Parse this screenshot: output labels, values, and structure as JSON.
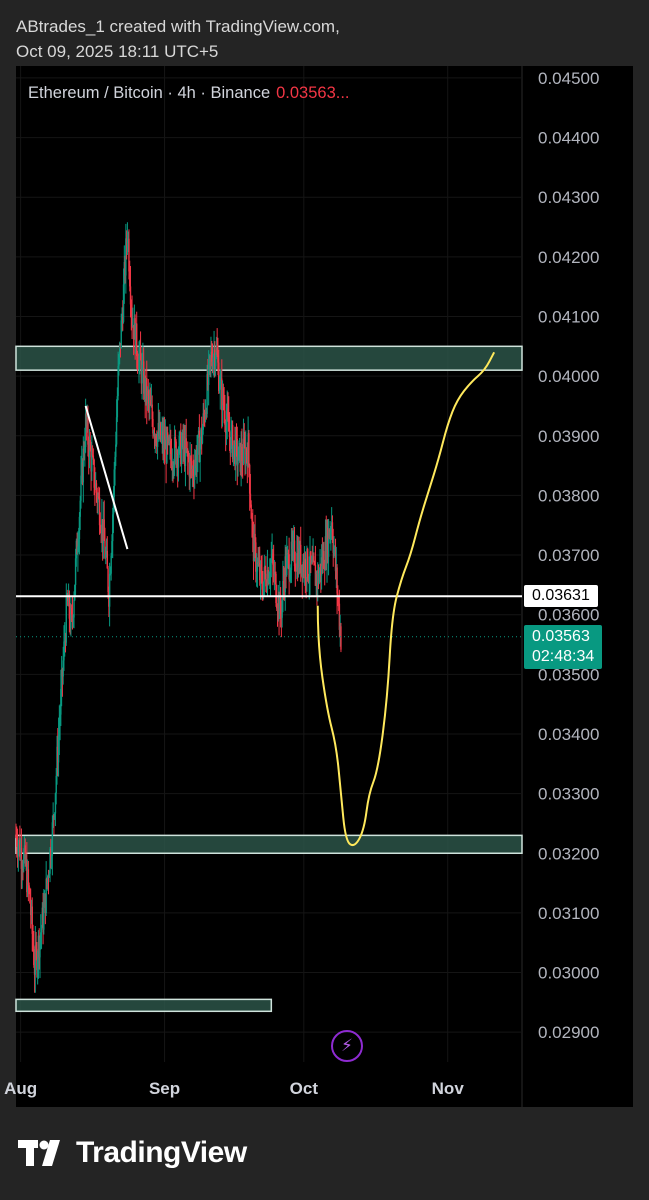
{
  "header": {
    "line1": "ABtrades_1 created with TradingView.com,",
    "line2": "Oct 09, 2025 18:11 UTC+5"
  },
  "ticker": {
    "symbol": "Ethereum / Bitcoin · 4h · Binance",
    "price": "0.03563..."
  },
  "price_tags": {
    "level": "0.03631",
    "last_price": "0.03563",
    "countdown": "02:48:34"
  },
  "footer": {
    "brand": "TradingView"
  },
  "colors": {
    "up": "#089981",
    "down": "#f23645",
    "zone_fill": "#2b5448",
    "zone_border": "#cfe3dc",
    "projection": "#ffe95c",
    "level_line": "#ffffff",
    "lightning": "#8e2bd1"
  },
  "chart_data": {
    "type": "candlestick",
    "y_ticks": [
      "0.04500",
      "0.04400",
      "0.04300",
      "0.04200",
      "0.04100",
      "0.04000",
      "0.03900",
      "0.03800",
      "0.03700",
      "0.03600",
      "0.03500",
      "0.03400",
      "0.03300",
      "0.03200",
      "0.03100",
      "0.03000",
      "0.02900"
    ],
    "ylim": [
      0.0285,
      0.0452
    ],
    "x_ticks": [
      {
        "label": "Aug",
        "date": "2025-08-01"
      },
      {
        "label": "Sep",
        "date": "2025-09-01"
      },
      {
        "label": "Oct",
        "date": "2025-10-01"
      },
      {
        "label": "Nov",
        "date": "2025-11-01"
      }
    ],
    "x_range": [
      "2025-07-31",
      "2025-11-17"
    ],
    "grid": true,
    "last_date": "2025-10-09",
    "price_path": [
      [
        "2025-07-31",
        0.0323
      ],
      [
        "2025-08-02",
        0.0318
      ],
      [
        "2025-08-03",
        0.0312
      ],
      [
        "2025-08-04",
        0.0301
      ],
      [
        "2025-08-06",
        0.031
      ],
      [
        "2025-08-08",
        0.0325
      ],
      [
        "2025-08-10",
        0.035
      ],
      [
        "2025-08-11",
        0.0362
      ],
      [
        "2025-08-12",
        0.0358
      ],
      [
        "2025-08-13",
        0.037
      ],
      [
        "2025-08-15",
        0.0392
      ],
      [
        "2025-08-17",
        0.0382
      ],
      [
        "2025-08-18",
        0.0378
      ],
      [
        "2025-08-19",
        0.0372
      ],
      [
        "2025-08-20",
        0.0364
      ],
      [
        "2025-08-21",
        0.038
      ],
      [
        "2025-08-22",
        0.04
      ],
      [
        "2025-08-23",
        0.0412
      ],
      [
        "2025-08-24",
        0.0425
      ],
      [
        "2025-08-25",
        0.041
      ],
      [
        "2025-08-26",
        0.0405
      ],
      [
        "2025-08-28",
        0.0397
      ],
      [
        "2025-08-30",
        0.0391
      ],
      [
        "2025-09-02",
        0.0387
      ],
      [
        "2025-09-05",
        0.0388
      ],
      [
        "2025-09-07",
        0.0384
      ],
      [
        "2025-09-09",
        0.039
      ],
      [
        "2025-09-11",
        0.0403
      ],
      [
        "2025-09-12",
        0.0405
      ],
      [
        "2025-09-13",
        0.0398
      ],
      [
        "2025-09-15",
        0.039
      ],
      [
        "2025-09-17",
        0.0386
      ],
      [
        "2025-09-19",
        0.0388
      ],
      [
        "2025-09-20",
        0.0372
      ],
      [
        "2025-09-21",
        0.0368
      ],
      [
        "2025-09-22",
        0.0365
      ],
      [
        "2025-09-24",
        0.0369
      ],
      [
        "2025-09-26",
        0.036
      ],
      [
        "2025-09-27",
        0.0368
      ],
      [
        "2025-09-29",
        0.037
      ],
      [
        "2025-10-02",
        0.0368
      ],
      [
        "2025-10-04",
        0.0366
      ],
      [
        "2025-10-06",
        0.0372
      ],
      [
        "2025-10-07",
        0.0376
      ],
      [
        "2025-10-08",
        0.0366
      ],
      [
        "2025-10-09",
        0.03563
      ]
    ],
    "level_line": 0.03631,
    "last_price": 0.03563,
    "zones": [
      {
        "from": "2025-07-31",
        "to": "2025-11-17",
        "low": 0.0401,
        "high": 0.0405
      },
      {
        "from": "2025-07-31",
        "to": "2025-11-17",
        "low": 0.032,
        "high": 0.0323
      },
      {
        "from": "2025-07-31",
        "to": "2025-09-24",
        "low": 0.02935,
        "high": 0.02955
      }
    ],
    "trendline": [
      [
        "2025-08-15",
        0.0395
      ],
      [
        "2025-08-24",
        0.0371
      ]
    ],
    "projection_path": [
      [
        "2025-10-04",
        0.03615
      ],
      [
        "2025-10-04",
        0.0355
      ],
      [
        "2025-10-06",
        0.0344
      ],
      [
        "2025-10-08",
        0.0338
      ],
      [
        "2025-10-09",
        0.033
      ],
      [
        "2025-10-10",
        0.0322
      ],
      [
        "2025-10-12",
        0.0321
      ],
      [
        "2025-10-14",
        0.0324
      ],
      [
        "2025-10-15",
        0.033
      ],
      [
        "2025-10-17",
        0.0334
      ],
      [
        "2025-10-19",
        0.0346
      ],
      [
        "2025-10-20",
        0.036
      ],
      [
        "2025-10-22",
        0.0366
      ],
      [
        "2025-10-24",
        0.037
      ],
      [
        "2025-10-26",
        0.0376
      ],
      [
        "2025-10-28",
        0.0381
      ],
      [
        "2025-10-30",
        0.0386
      ],
      [
        "2025-11-01",
        0.0392
      ],
      [
        "2025-11-03",
        0.0396
      ],
      [
        "2025-11-06",
        0.0399
      ],
      [
        "2025-11-09",
        0.0401
      ],
      [
        "2025-11-11",
        0.0404
      ]
    ]
  }
}
